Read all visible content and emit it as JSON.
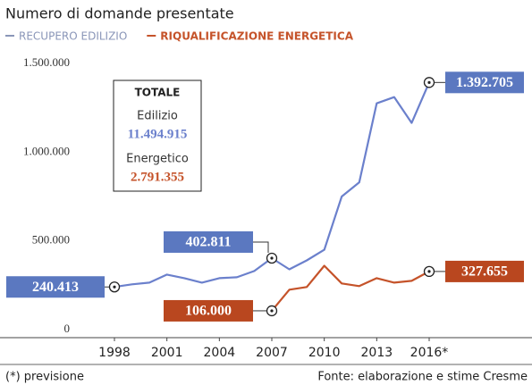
{
  "chart_data": {
    "type": "line",
    "title": "Numero di domande presentate",
    "x": [
      1998,
      1999,
      2000,
      2001,
      2002,
      2003,
      2004,
      2005,
      2006,
      2007,
      2008,
      2009,
      2010,
      2011,
      2012,
      2013,
      2014,
      2015,
      2016
    ],
    "xlim": [
      1998,
      2016
    ],
    "xticks": [
      1998,
      2001,
      2004,
      2007,
      2010,
      2013,
      {
        "value": 2016,
        "label": "2016*"
      }
    ],
    "ylim": [
      0,
      1500000
    ],
    "yticks": [
      0,
      {
        "value": 500000,
        "label": "500.000"
      },
      {
        "value": 1000000,
        "label": "1.000.000"
      },
      {
        "value": 1500000,
        "label": "1.500.000"
      }
    ],
    "grid": false,
    "series": [
      {
        "name": "RECUPERO EDILIZIO",
        "color": "#6b80cc",
        "label_color": "#5b78c0",
        "values": [
          240413,
          255000,
          265000,
          310000,
          290000,
          265000,
          290000,
          295000,
          330000,
          402811,
          340000,
          390000,
          450000,
          750000,
          830000,
          1275000,
          1310000,
          1165000,
          1392705
        ],
        "value_labels": [
          "240.413",
          null,
          null,
          null,
          null,
          null,
          null,
          null,
          null,
          "402.811",
          null,
          null,
          null,
          null,
          null,
          null,
          null,
          null,
          "1.392.705"
        ]
      },
      {
        "name": "RIQUALIFICAZIONE ENERGETICA",
        "color": "#c5532a",
        "label_color": "#b9471f",
        "values": [
          null,
          null,
          null,
          null,
          null,
          null,
          null,
          null,
          null,
          106000,
          225000,
          240000,
          360000,
          260000,
          245000,
          290000,
          265000,
          275000,
          327655
        ],
        "value_labels": [
          null,
          null,
          null,
          null,
          null,
          null,
          null,
          null,
          null,
          "106.000",
          null,
          null,
          null,
          null,
          null,
          null,
          null,
          null,
          "327.655"
        ]
      }
    ],
    "totals": {
      "title": "TOTALE",
      "items": [
        {
          "name": "Edilizio",
          "label": "11.494.915"
        },
        {
          "name": "Energetico",
          "label": "2.791.355"
        }
      ]
    },
    "footnote": "(*) previsione",
    "source": "Fonte: elaborazione e stime Cresme"
  }
}
